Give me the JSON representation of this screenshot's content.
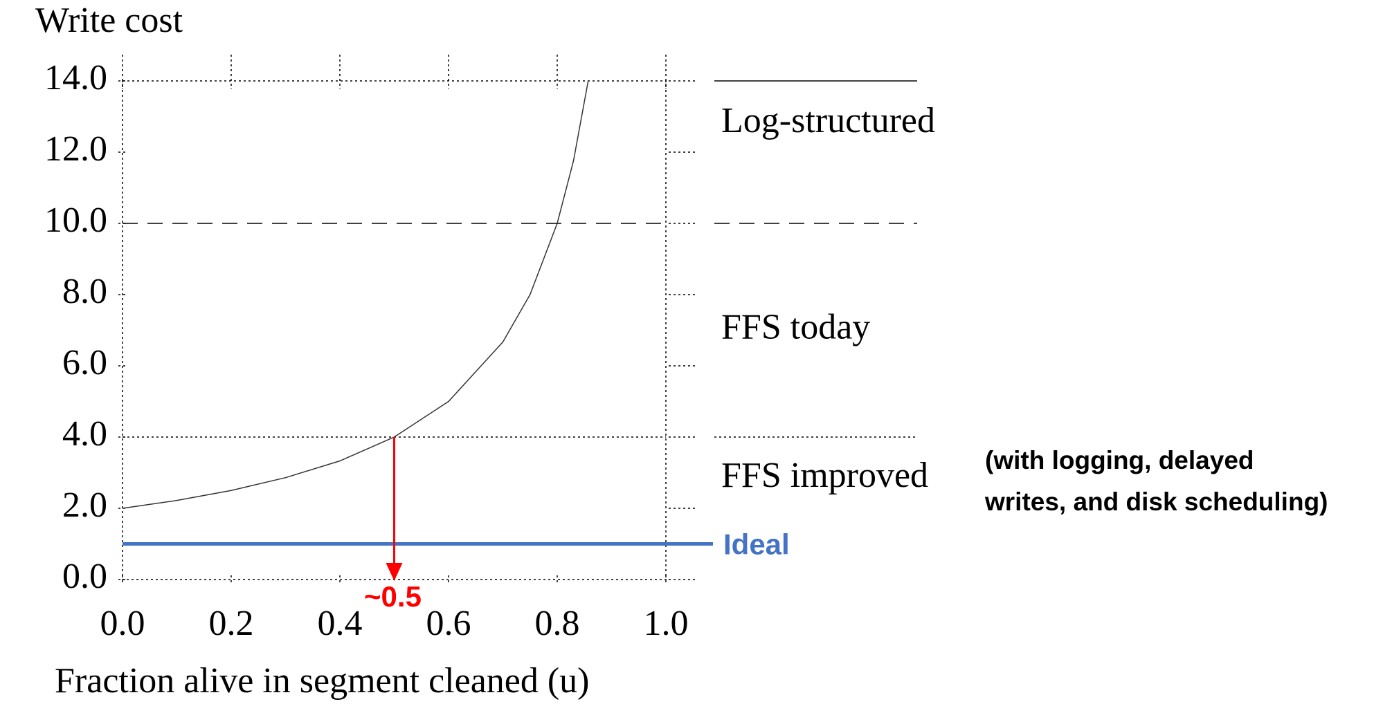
{
  "chart_data": {
    "type": "line",
    "title": "Write cost",
    "x_label": "Fraction alive in segment cleaned (u)",
    "x": [
      0,
      0.1,
      0.2,
      0.3,
      0.4,
      0.5,
      0.6,
      0.7,
      0.75,
      0.8,
      0.83,
      0.857
    ],
    "series": [
      {
        "name": "Write cost",
        "color": "#333333",
        "values": [
          2.0,
          2.22,
          2.5,
          2.86,
          3.33,
          4.0,
          5.0,
          6.67,
          8.0,
          10.0,
          11.76,
          14.0
        ]
      }
    ],
    "xlim": [
      0,
      1.0
    ],
    "ylim": [
      0,
      14.0
    ],
    "xticks": [
      {
        "value": 0,
        "label": "0.0"
      },
      {
        "value": 0.2,
        "label": "0.2"
      },
      {
        "value": 0.4,
        "label": "0.4"
      },
      {
        "value": 0.6,
        "label": "0.6"
      },
      {
        "value": 0.8,
        "label": "0.8"
      },
      {
        "value": 1.0,
        "label": "1.0"
      }
    ],
    "yticks": [
      {
        "value": 0,
        "label": "0.0"
      },
      {
        "value": 2,
        "label": "2.0"
      },
      {
        "value": 4,
        "label": "4.0"
      },
      {
        "value": 6,
        "label": "6.0"
      },
      {
        "value": 8,
        "label": "8.0"
      },
      {
        "value": 10,
        "label": "10.0"
      },
      {
        "value": 12,
        "label": "12.0"
      },
      {
        "value": 14,
        "label": "14.0"
      }
    ],
    "regions": [
      {
        "label": "Log-structured",
        "value": 14,
        "style": "solid"
      },
      {
        "label": "FFS today",
        "value": 10,
        "style": "dashed"
      },
      {
        "label": "FFS improved",
        "value": 4,
        "style": "dotted"
      }
    ],
    "note": [
      "(with logging, delayed",
      "writes, and disk scheduling)"
    ],
    "ideal": {
      "label": "Ideal",
      "value": 1,
      "color": "#4472c4"
    },
    "annotation": {
      "label": "~0.5",
      "x": 0.5,
      "y": 4,
      "color": "#ff0000"
    }
  }
}
